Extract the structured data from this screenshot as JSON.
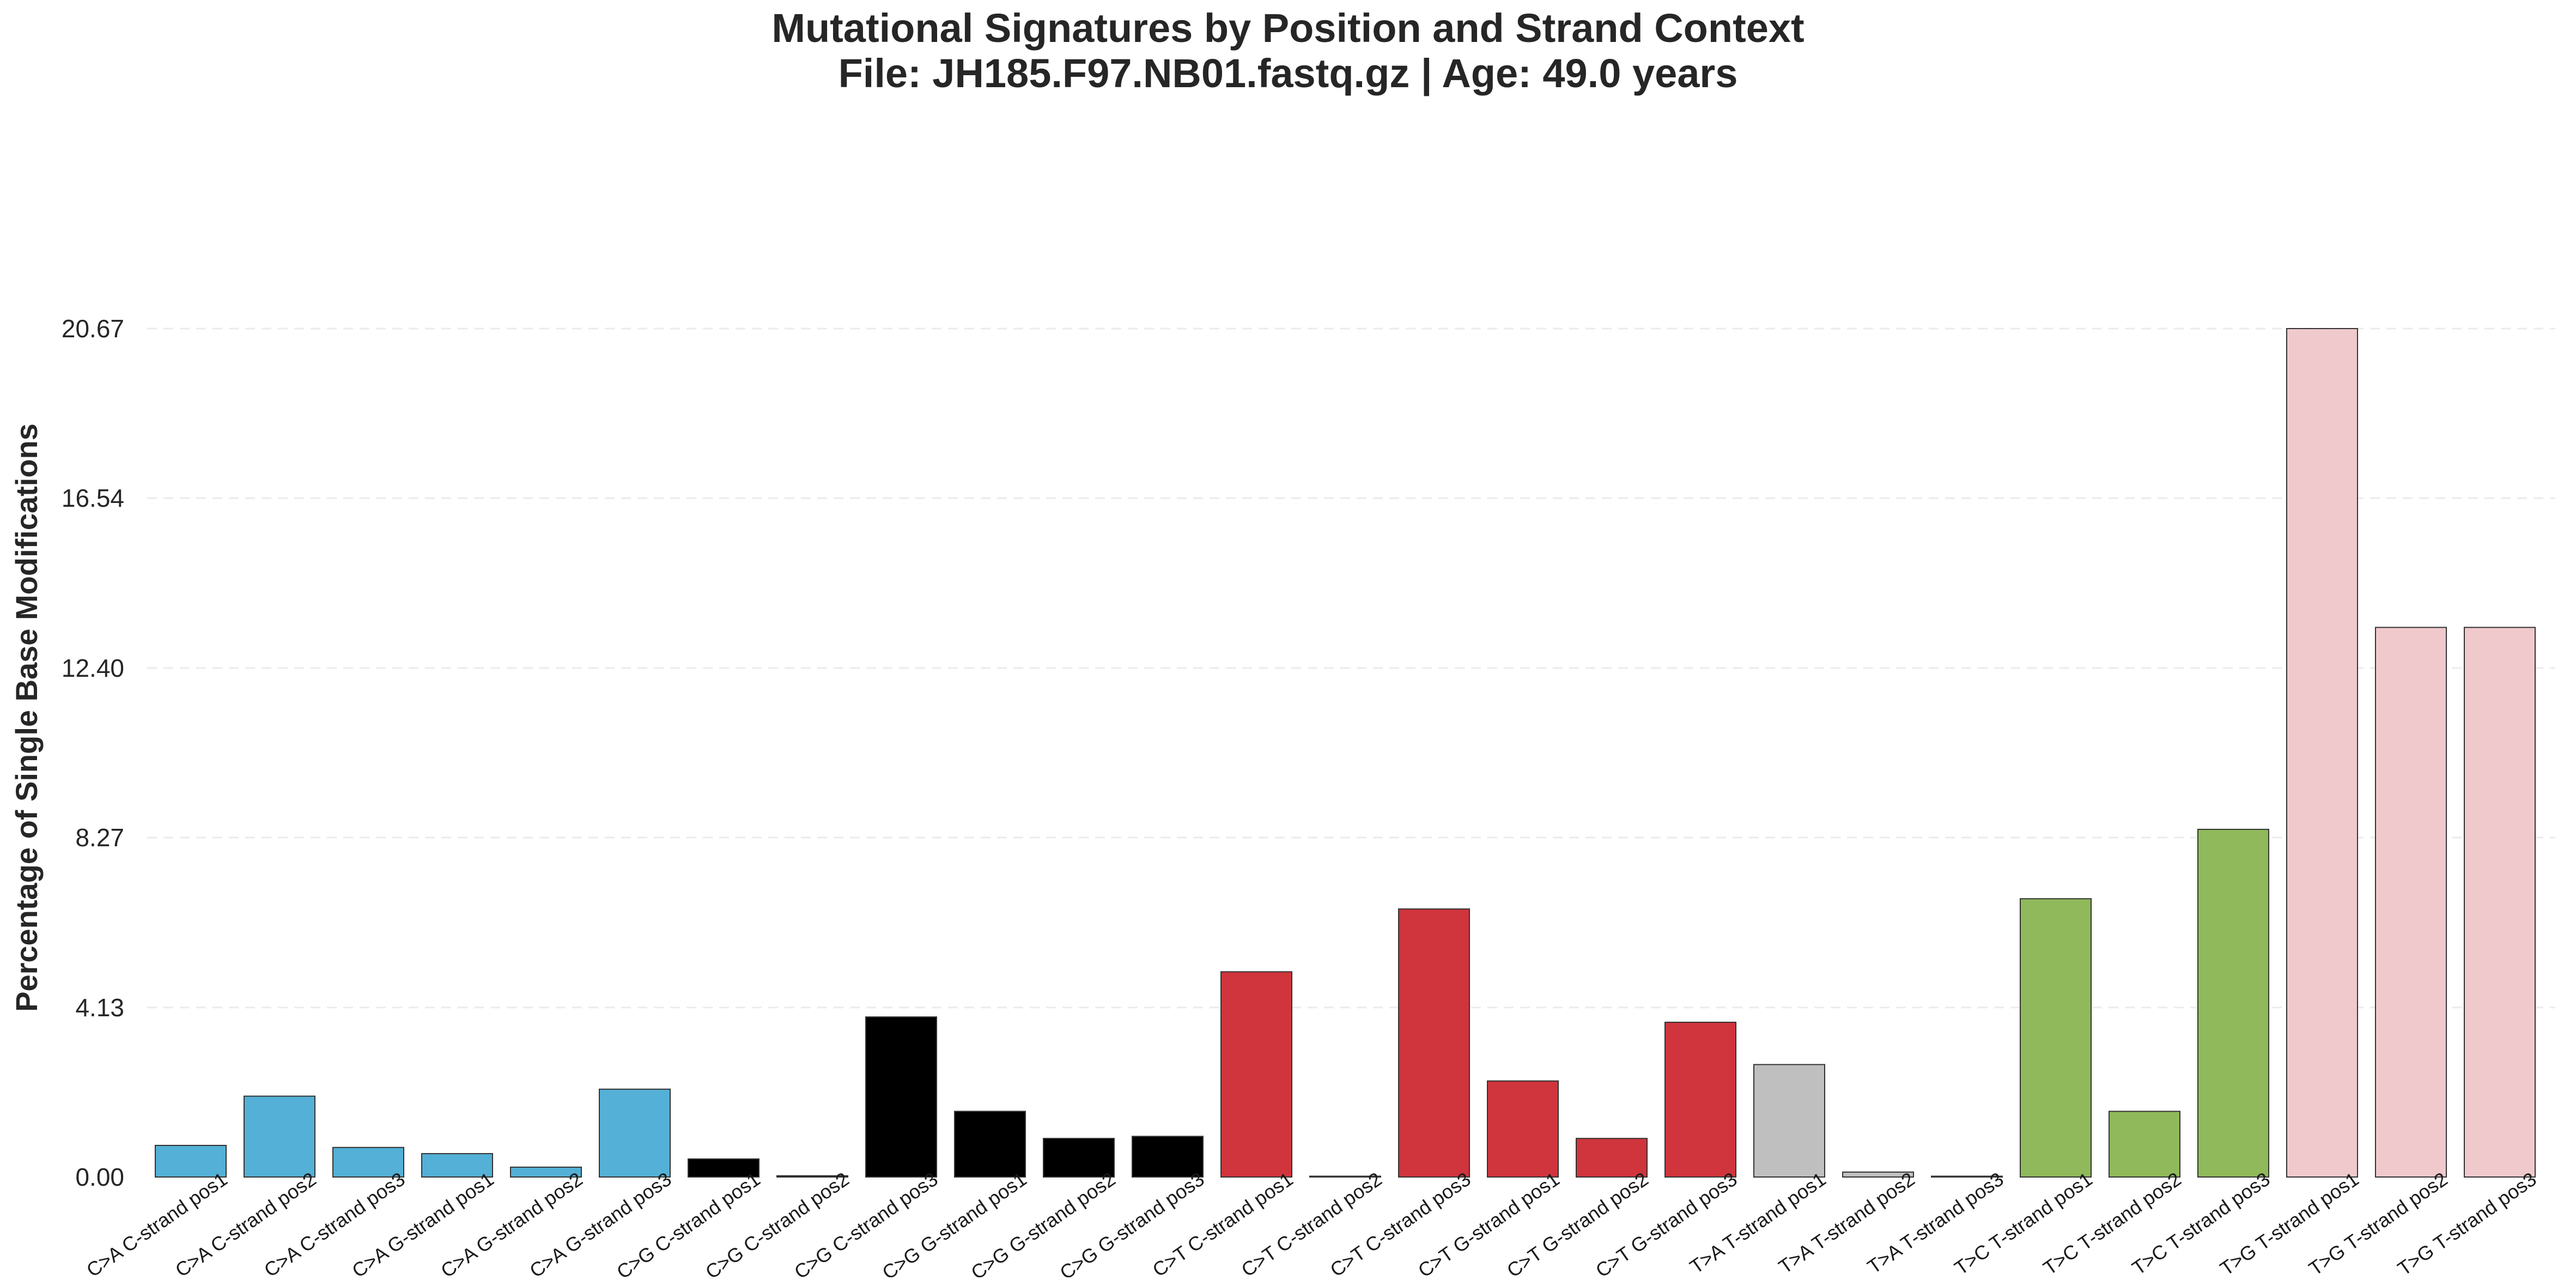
{
  "chart_data": {
    "type": "bar",
    "title": "Mutational Signatures by Position and Strand Context",
    "subtitle": "File: JH185.F97.NB01.fastq.gz | Age: 49.0 years",
    "xlabel": "",
    "ylabel": "Percentage of Single Base Modifications",
    "ylim": [
      0,
      20.67
    ],
    "yticks": [
      "0.00",
      "4.13",
      "8.27",
      "12.40",
      "16.54",
      "20.67"
    ],
    "grid": "horizontal dashed",
    "categories": [
      "C>A C-strand pos1",
      "C>A C-strand pos2",
      "C>A C-strand pos3",
      "C>A G-strand pos1",
      "C>A G-strand pos2",
      "C>A G-strand pos3",
      "C>G C-strand pos1",
      "C>G C-strand pos2",
      "C>G C-strand pos3",
      "C>G G-strand pos1",
      "C>G G-strand pos2",
      "C>G G-strand pos3",
      "C>T C-strand pos1",
      "C>T C-strand pos2",
      "C>T C-strand pos3",
      "C>T G-strand pos1",
      "C>T G-strand pos2",
      "C>T G-strand pos3",
      "T>A T-strand pos1",
      "T>A T-strand pos2",
      "T>A T-strand pos3",
      "T>C T-strand pos1",
      "T>C T-strand pos2",
      "T>C T-strand pos3",
      "T>G T-strand pos1",
      "T>G T-strand pos2",
      "T>G T-strand pos3"
    ],
    "values": [
      0.77,
      1.97,
      0.72,
      0.57,
      0.24,
      2.14,
      0.44,
      0.03,
      3.9,
      1.6,
      0.94,
      0.99,
      5.0,
      0.02,
      6.53,
      2.34,
      0.94,
      3.77,
      2.74,
      0.12,
      0.02,
      6.78,
      1.6,
      8.47,
      20.67,
      13.39,
      13.39
    ],
    "bar_colors": [
      "#54b0d6",
      "#54b0d6",
      "#54b0d6",
      "#54b0d6",
      "#54b0d6",
      "#54b0d6",
      "#000000",
      "#000000",
      "#000000",
      "#000000",
      "#000000",
      "#000000",
      "#d0343c",
      "#d0343c",
      "#d0343c",
      "#d0343c",
      "#d0343c",
      "#d0343c",
      "#bfbfbf",
      "#bfbfbf",
      "#bfbfbf",
      "#8fb95a",
      "#8fb95a",
      "#8fb95a",
      "#f0c9cc",
      "#f0c9cc",
      "#f0c9cc"
    ]
  }
}
